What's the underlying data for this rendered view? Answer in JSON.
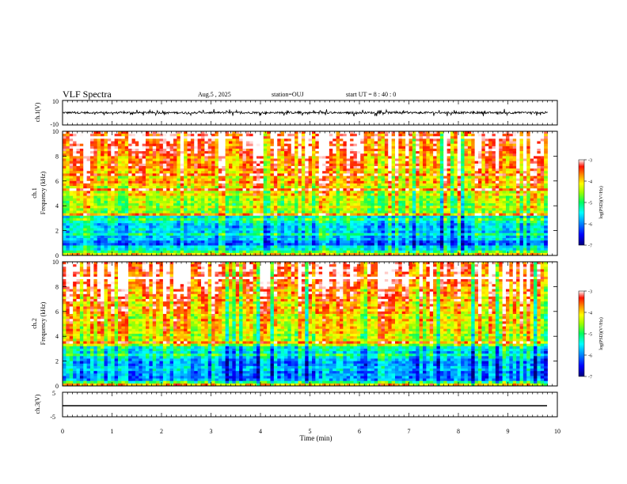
{
  "header": {
    "title": "VLF Spectra",
    "date": "Aug.5 , 2025",
    "station": "station=OUJ",
    "start_ut": "start UT = 8 : 40 : 0"
  },
  "chart_data": [
    {
      "type": "line",
      "panel": "ch1-waveform",
      "ylabel": "ch.1(V)",
      "ylim": [
        -10,
        10
      ],
      "yticks": [
        "10",
        "-10"
      ],
      "xlim": [
        0,
        10
      ],
      "note_level": 0,
      "series": [
        {
          "values_range": [
            -3,
            3
          ]
        }
      ]
    },
    {
      "type": "heatmap",
      "panel": "ch1-spectrogram",
      "ylabel": "ch.1\nFrequency (kHz)",
      "ylim": [
        0,
        10
      ],
      "yticks": [
        "0",
        "2",
        "4",
        "6",
        "8",
        "10"
      ],
      "xlim": [
        0,
        10
      ],
      "colorbar": {
        "label": "log(PSD)(V²/Hz)",
        "range": [
          -7,
          -3
        ],
        "ticks": [
          "-3",
          "-4",
          "-5",
          "-6",
          "-7"
        ]
      }
    },
    {
      "type": "heatmap",
      "panel": "ch2-spectrogram",
      "ylabel": "ch.2\nFrequency (kHz)",
      "ylim": [
        0,
        10
      ],
      "yticks": [
        "0",
        "2",
        "4",
        "6",
        "8",
        "10"
      ],
      "xlim": [
        0,
        10
      ],
      "colorbar": {
        "label": "log(PSD)(V²/Hz)",
        "range": [
          -7,
          -3
        ],
        "ticks": [
          "-3",
          "-4",
          "-5",
          "-6",
          "-7"
        ]
      }
    },
    {
      "type": "line",
      "panel": "ch3-waveform",
      "ylabel": "ch.3(V)",
      "ylim": [
        -5,
        5
      ],
      "yticks": [
        "5",
        "-5"
      ],
      "xlim": [
        0,
        10
      ],
      "series": [
        {
          "x": [
            0,
            9.8
          ],
          "y": [
            -1,
            -1
          ]
        }
      ]
    }
  ],
  "xaxis": {
    "label": "Time (min)",
    "ticks": [
      "0",
      "1",
      "2",
      "3",
      "4",
      "5",
      "6",
      "7",
      "8",
      "9",
      "10"
    ]
  },
  "colors": {
    "scale": [
      "#00007a",
      "#0000ff",
      "#00a0ff",
      "#00ffff",
      "#00ff80",
      "#40ff00",
      "#c0ff00",
      "#ffff00",
      "#ffa000",
      "#ff2000",
      "#ffffff"
    ]
  }
}
